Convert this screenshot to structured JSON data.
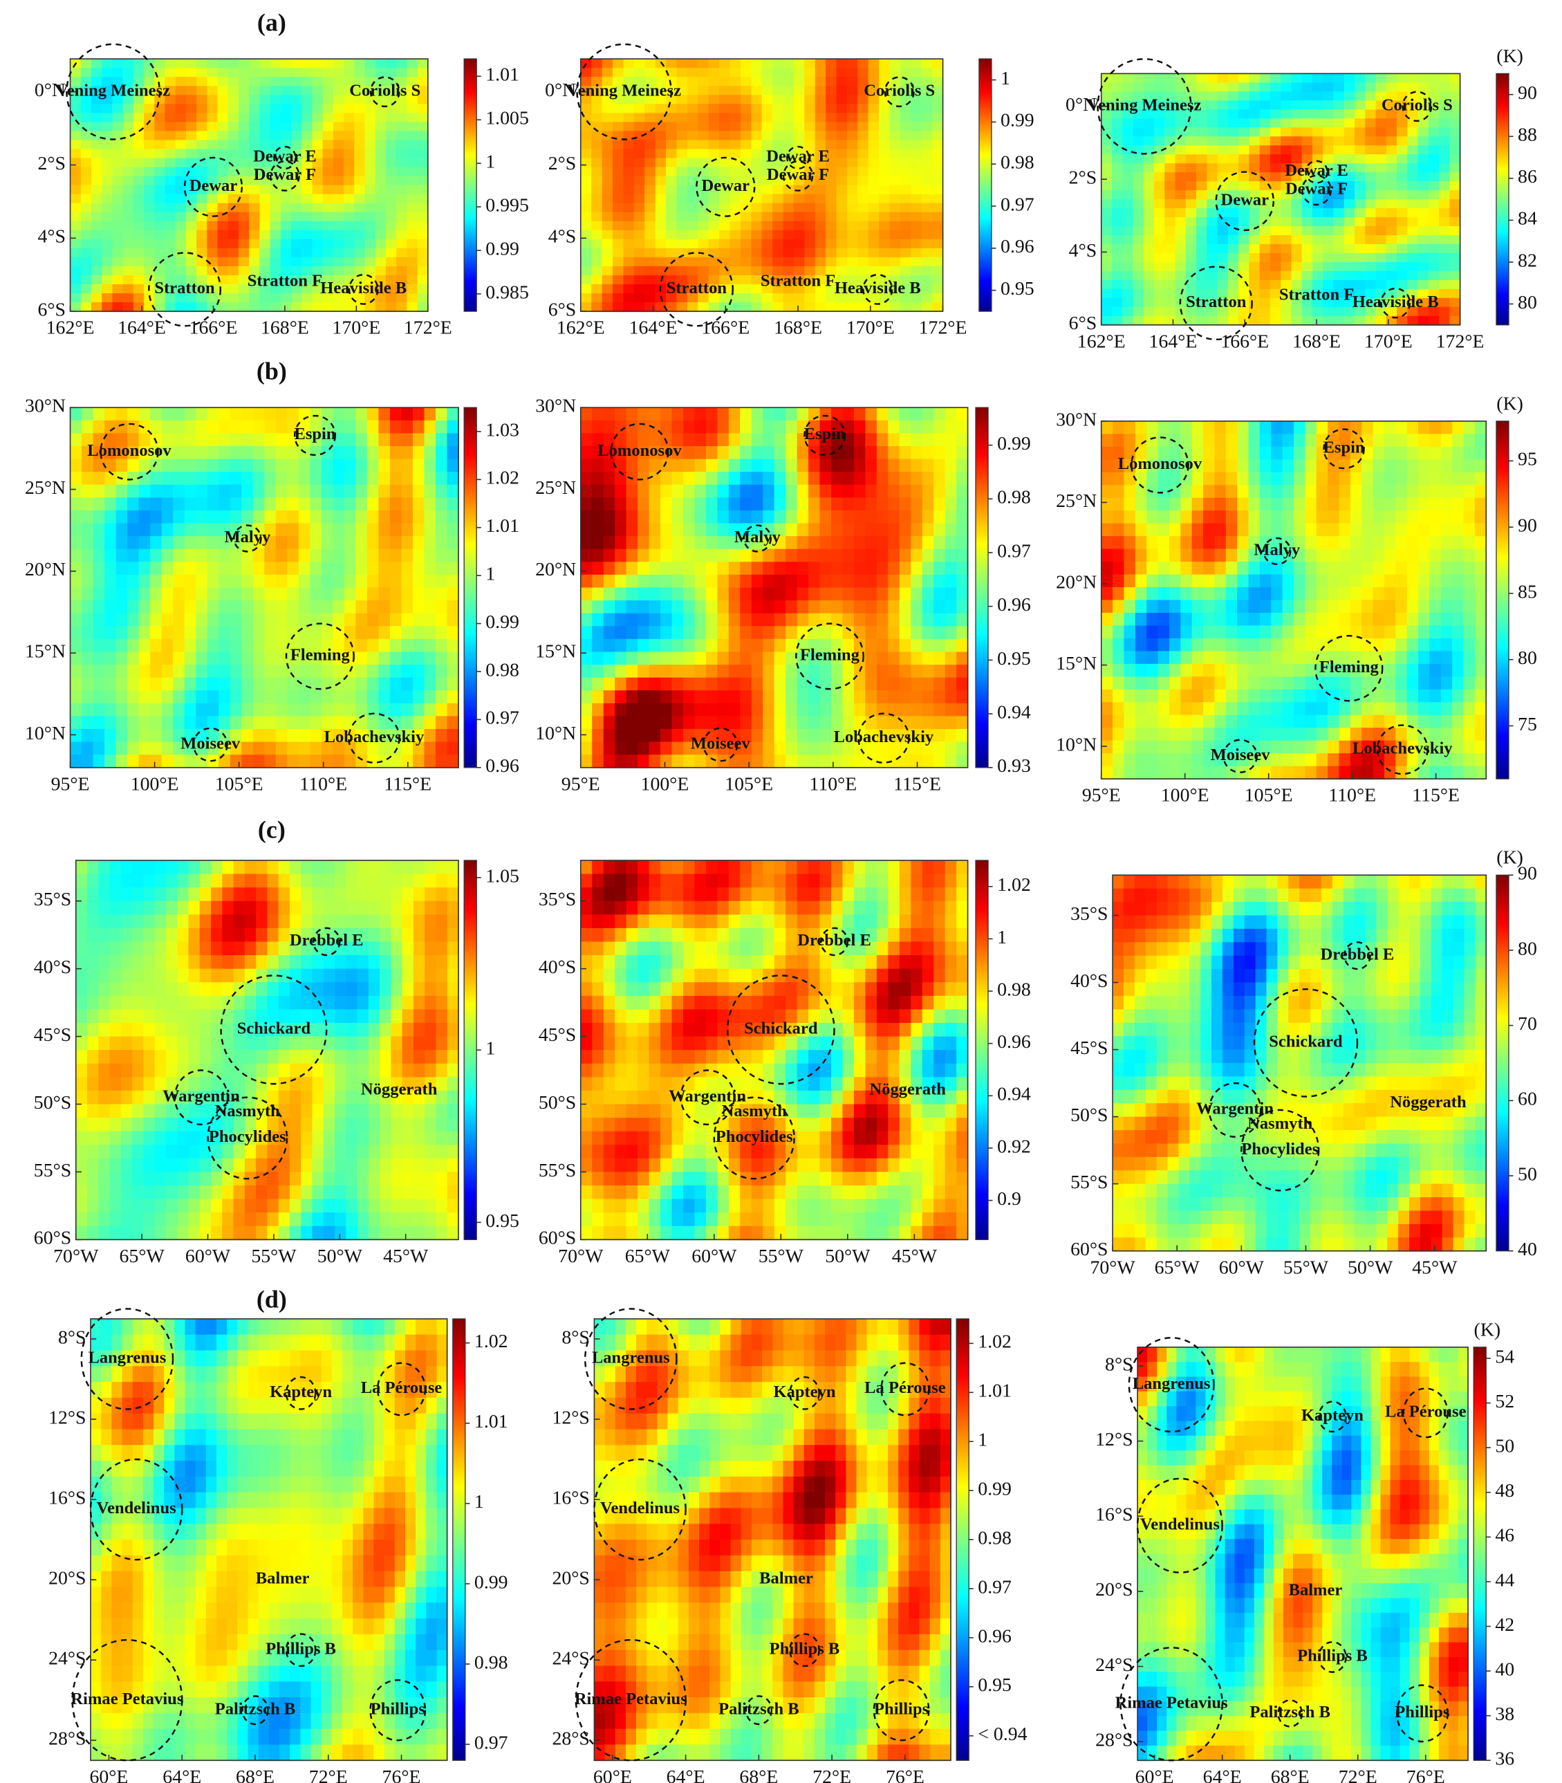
{
  "rows": [
    {
      "label": "(a)",
      "xlim": [
        162,
        172
      ],
      "ylim": [
        -6,
        0.9
      ],
      "xticks": [
        {
          "value": 162,
          "label": "162°E"
        },
        {
          "value": 164,
          "label": "164°E"
        },
        {
          "value": 166,
          "label": "166°E"
        },
        {
          "value": 168,
          "label": "168°E"
        },
        {
          "value": 170,
          "label": "170°E"
        },
        {
          "value": 172,
          "label": "172°E"
        }
      ],
      "yticks": [
        {
          "value": 0,
          "label": "0°N"
        },
        {
          "value": -2,
          "label": "2°S"
        },
        {
          "value": -4,
          "label": "4°S"
        },
        {
          "value": -6,
          "label": "6°S"
        }
      ],
      "craters": [
        "Vening Meinesz",
        "Coriolis S",
        "Dewar E",
        "Dewar",
        "Dewar F",
        "Stratton",
        "Stratton F",
        "Heaviside B"
      ],
      "panels": [
        {
          "clim": [
            0.983,
            1.012
          ],
          "cticks": [
            0.985,
            0.99,
            0.995,
            1,
            1.005,
            1.01
          ]
        },
        {
          "clim": [
            0.945,
            1.005
          ],
          "cticks": [
            0.95,
            0.96,
            0.97,
            0.98,
            0.99,
            1
          ]
        },
        {
          "unit": "(K)",
          "clim": [
            79,
            91
          ],
          "cticks": [
            80,
            82,
            84,
            86,
            88,
            90
          ]
        }
      ]
    },
    {
      "label": "(b)",
      "xlim": [
        95,
        118
      ],
      "ylim": [
        8,
        30
      ],
      "xticks": [
        {
          "value": 95,
          "label": "95°E"
        },
        {
          "value": 100,
          "label": "100°E"
        },
        {
          "value": 105,
          "label": "105°E"
        },
        {
          "value": 110,
          "label": "110°E"
        },
        {
          "value": 115,
          "label": "115°E"
        }
      ],
      "yticks": [
        {
          "value": 30,
          "label": "30°N"
        },
        {
          "value": 25,
          "label": "25°N"
        },
        {
          "value": 20,
          "label": "20°N"
        },
        {
          "value": 15,
          "label": "15°N"
        },
        {
          "value": 10,
          "label": "10°N"
        }
      ],
      "craters": [
        "Lomonosov",
        "Espin",
        "Malyy",
        "Fleming",
        "Moiseev",
        "Lobachevskiy"
      ],
      "panels": [
        {
          "clim": [
            0.96,
            1.035
          ],
          "cticks": [
            0.96,
            0.97,
            0.98,
            0.99,
            1,
            1.01,
            1.02,
            1.03
          ]
        },
        {
          "clim": [
            0.93,
            0.997
          ],
          "cticks": [
            0.93,
            0.94,
            0.95,
            0.96,
            0.97,
            0.98,
            0.99
          ]
        },
        {
          "unit": "(K)",
          "clim": [
            71,
            98
          ],
          "cticks": [
            75,
            80,
            85,
            90,
            95
          ]
        }
      ]
    },
    {
      "label": "(c)",
      "xlim": [
        -70,
        -41
      ],
      "ylim": [
        -60,
        -32
      ],
      "xticks": [
        {
          "value": -70,
          "label": "70°W"
        },
        {
          "value": -65,
          "label": "65°W"
        },
        {
          "value": -60,
          "label": "60°W"
        },
        {
          "value": -55,
          "label": "55°W"
        },
        {
          "value": -50,
          "label": "50°W"
        },
        {
          "value": -45,
          "label": "45°W"
        }
      ],
      "yticks": [
        {
          "value": -35,
          "label": "35°S"
        },
        {
          "value": -40,
          "label": "40°S"
        },
        {
          "value": -45,
          "label": "45°S"
        },
        {
          "value": -50,
          "label": "50°S"
        },
        {
          "value": -55,
          "label": "55°S"
        },
        {
          "value": -60,
          "label": "60°S"
        }
      ],
      "craters": [
        "Drebbel E",
        "Schickard",
        "Wargentin",
        "Nasmyth",
        "Nöggerath",
        "Phocylides"
      ],
      "panels": [
        {
          "clim": [
            0.945,
            1.055
          ],
          "cticks": [
            0.95,
            1,
            1.05
          ]
        },
        {
          "clim": [
            0.885,
            1.03
          ],
          "cticks": [
            0.9,
            0.92,
            0.94,
            0.96,
            0.98,
            1,
            1.02
          ]
        },
        {
          "unit": "(K)",
          "clim": [
            40,
            90
          ],
          "cticks": [
            40,
            50,
            60,
            70,
            80,
            90
          ]
        }
      ]
    },
    {
      "label": "(d)",
      "xlim": [
        59,
        78.5
      ],
      "ylim": [
        -29,
        -7
      ],
      "xticks": [
        {
          "value": 60,
          "label": "60°E"
        },
        {
          "value": 64,
          "label": "64°E"
        },
        {
          "value": 68,
          "label": "68°E"
        },
        {
          "value": 72,
          "label": "72°E"
        },
        {
          "value": 76,
          "label": "76°E"
        }
      ],
      "yticks": [
        {
          "value": -8,
          "label": "8°S"
        },
        {
          "value": -12,
          "label": "12°S"
        },
        {
          "value": -16,
          "label": "16°S"
        },
        {
          "value": -20,
          "label": "20°S"
        },
        {
          "value": -24,
          "label": "24°S"
        },
        {
          "value": -28,
          "label": "28°S"
        }
      ],
      "craters": [
        "Langrenus",
        "Kapteyn",
        "La Pérouse",
        "Vendelinus",
        "Balmer",
        "Phillips B",
        "Rimae Petavius",
        "Palitzsch B",
        "Phillips"
      ],
      "panels": [
        {
          "clim": [
            0.968,
            1.023
          ],
          "cticks": [
            0.97,
            0.98,
            0.99,
            1,
            1.01,
            1.02
          ]
        },
        {
          "clim": [
            0.935,
            1.025
          ],
          "cticks": [
            {
              "value": 0.94,
              "label": "< 0.94"
            },
            0.95,
            0.96,
            0.97,
            0.98,
            0.99,
            1,
            1.01,
            1.02
          ]
        },
        {
          "unit": "(K)",
          "clim": [
            36,
            54.5
          ],
          "cticks": [
            36,
            38,
            40,
            42,
            44,
            46,
            48,
            50,
            52,
            54
          ]
        }
      ]
    }
  ]
}
